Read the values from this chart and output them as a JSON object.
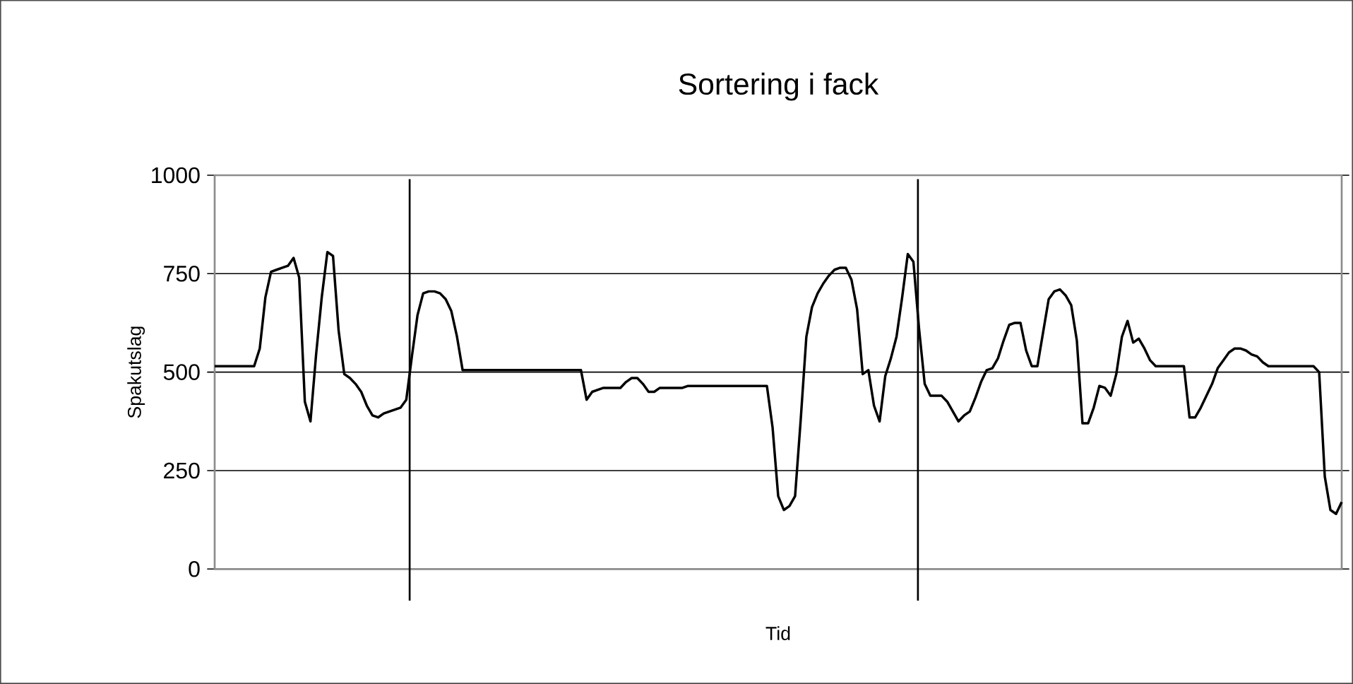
{
  "chart_data": {
    "type": "line",
    "title": "Sortering i fack",
    "xlabel": "Tid",
    "ylabel": "Spakutslag",
    "categories": [
      null,
      null,
      null,
      null,
      null,
      null,
      null,
      null,
      null,
      null,
      null,
      null,
      null,
      null,
      null,
      null,
      null,
      null,
      null,
      null,
      null,
      null,
      null,
      null,
      null,
      null,
      null,
      null,
      null,
      null,
      null,
      null,
      null,
      null,
      null,
      null,
      null,
      null,
      null,
      null,
      null,
      null,
      null,
      null,
      null,
      null,
      null,
      null,
      null,
      null,
      null,
      null,
      null,
      null,
      null,
      null,
      null,
      null,
      null,
      null,
      null,
      null,
      null,
      null,
      null,
      null,
      null,
      null,
      null,
      null,
      null,
      null,
      null,
      null,
      null,
      null,
      null,
      null,
      null,
      null,
      null,
      null,
      null,
      null,
      null,
      null,
      null,
      null,
      null,
      null,
      null,
      null,
      null,
      null,
      null,
      null,
      null,
      null,
      null,
      null,
      null,
      null,
      null,
      null,
      null,
      null,
      null,
      null,
      null,
      null,
      null,
      null,
      null,
      null,
      null,
      null,
      null,
      null,
      null,
      null,
      null,
      null,
      null,
      null,
      null,
      null,
      null,
      null,
      null,
      null,
      null,
      null,
      null,
      null,
      null,
      null,
      null,
      null,
      null,
      null,
      null,
      null,
      null,
      null,
      null,
      null,
      null,
      null,
      null,
      null,
      null,
      null,
      null,
      null,
      null,
      null,
      null,
      null,
      null,
      null,
      null,
      null,
      null,
      null,
      null,
      null,
      null,
      null,
      null,
      null,
      null,
      null,
      null,
      null,
      null,
      null,
      null,
      null,
      null,
      null,
      null,
      null,
      null,
      null,
      null,
      null,
      null,
      null,
      null,
      null,
      null,
      null,
      null,
      null,
      null,
      null,
      null,
      null,
      null,
      null,
      null
    ],
    "ylim": [
      0,
      1000
    ],
    "yticks": [
      0,
      250,
      500,
      750,
      1000
    ],
    "grid": "y",
    "tick_labels": "y",
    "marker": "none",
    "line_style": "solid",
    "series": [
      {
        "color": "#000000",
        "values": [
          515,
          515,
          515,
          515,
          515,
          515,
          515,
          515,
          560,
          690,
          755,
          760,
          765,
          770,
          790,
          740,
          425,
          375,
          545,
          690,
          805,
          795,
          605,
          495,
          485,
          470,
          450,
          415,
          390,
          385,
          395,
          400,
          405,
          410,
          430,
          540,
          645,
          700,
          705,
          705,
          700,
          685,
          655,
          590,
          505,
          505,
          505,
          505,
          505,
          505,
          505,
          505,
          505,
          505,
          505,
          505,
          505,
          505,
          505,
          505,
          505,
          505,
          505,
          505,
          505,
          505,
          430,
          450,
          455,
          460,
          460,
          460,
          460,
          475,
          485,
          485,
          470,
          450,
          450,
          460,
          460,
          460,
          460,
          460,
          465,
          465,
          465,
          465,
          465,
          465,
          465,
          465,
          465,
          465,
          465,
          465,
          465,
          465,
          465,
          360,
          185,
          150,
          160,
          185,
          380,
          590,
          665,
          700,
          725,
          745,
          760,
          765,
          765,
          735,
          660,
          495,
          505,
          415,
          375,
          490,
          535,
          590,
          690,
          800,
          780,
          610,
          470,
          440,
          440,
          440,
          425,
          400,
          375,
          390,
          400,
          435,
          475,
          505,
          510,
          535,
          580,
          620,
          625,
          625,
          555,
          515,
          515,
          600,
          685,
          705,
          710,
          695,
          670,
          580,
          370,
          370,
          410,
          465,
          460,
          440,
          495,
          590,
          630,
          575,
          585,
          560,
          530,
          515,
          515,
          515,
          515,
          515,
          515,
          385,
          385,
          410,
          440,
          470,
          510,
          530,
          550,
          560,
          560,
          555,
          545,
          540,
          525,
          515,
          515,
          515,
          515,
          515,
          515,
          515,
          515,
          515,
          500,
          235,
          150,
          140,
          170
        ]
      }
    ]
  }
}
